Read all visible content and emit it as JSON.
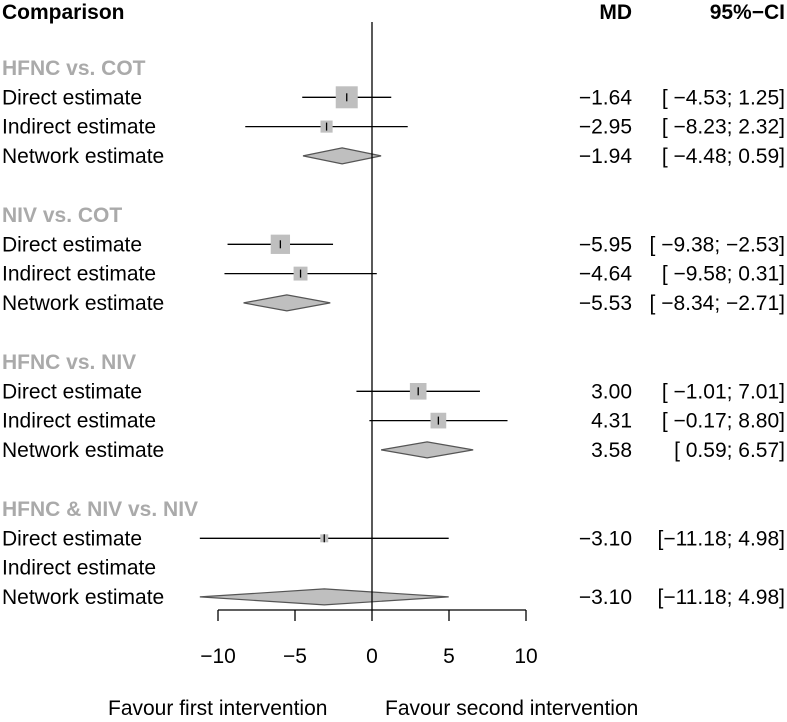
{
  "chart_data": {
    "type": "forest",
    "title": "",
    "xlabel_left": "Favour first intervention",
    "xlabel_right": "Favour second intervention",
    "xlim": [
      -10,
      10
    ],
    "xticks": [
      -10,
      -5,
      0,
      5,
      10
    ],
    "xtick_labels": [
      "−10",
      "−5",
      "0",
      "5",
      "10"
    ],
    "reference_line": 0,
    "headers": {
      "comparison": "Comparison",
      "md": "MD",
      "ci": "95%−CI"
    },
    "groups": [
      {
        "name": "HFNC vs. COT",
        "rows": [
          {
            "label": "Direct estimate",
            "kind": "square",
            "md": -1.64,
            "lo": -4.53,
            "hi": 1.25,
            "weight": 1.0,
            "md_text": "−1.64",
            "ci_text": "[ −4.53;  1.25]"
          },
          {
            "label": "Indirect estimate",
            "kind": "square",
            "md": -2.95,
            "lo": -8.23,
            "hi": 2.32,
            "weight": 0.45,
            "md_text": "−2.95",
            "ci_text": "[ −8.23;  2.32]"
          },
          {
            "label": "Network estimate",
            "kind": "diamond",
            "md": -1.94,
            "lo": -4.48,
            "hi": 0.59,
            "md_text": "−1.94",
            "ci_text": "[ −4.48;  0.59]"
          }
        ]
      },
      {
        "name": "NIV vs. COT",
        "rows": [
          {
            "label": "Direct estimate",
            "kind": "square",
            "md": -5.95,
            "lo": -9.38,
            "hi": -2.53,
            "weight": 0.85,
            "md_text": "−5.95",
            "ci_text": "[ −9.38; −2.53]"
          },
          {
            "label": "Indirect estimate",
            "kind": "square",
            "md": -4.64,
            "lo": -9.58,
            "hi": 0.31,
            "weight": 0.55,
            "md_text": "−4.64",
            "ci_text": "[ −9.58;  0.31]"
          },
          {
            "label": "Network estimate",
            "kind": "diamond",
            "md": -5.53,
            "lo": -8.34,
            "hi": -2.71,
            "md_text": "−5.53",
            "ci_text": "[ −8.34; −2.71]"
          }
        ]
      },
      {
        "name": "HFNC vs. NIV",
        "rows": [
          {
            "label": "Direct estimate",
            "kind": "square",
            "md": 3.0,
            "lo": -1.01,
            "hi": 7.01,
            "weight": 0.7,
            "md_text": "3.00",
            "ci_text": "[ −1.01;  7.01]"
          },
          {
            "label": "Indirect estimate",
            "kind": "square",
            "md": 4.31,
            "lo": -0.17,
            "hi": 8.8,
            "weight": 0.65,
            "md_text": "4.31",
            "ci_text": "[ −0.17;  8.80]"
          },
          {
            "label": "Network estimate",
            "kind": "diamond",
            "md": 3.58,
            "lo": 0.59,
            "hi": 6.57,
            "md_text": "3.58",
            "ci_text": "[  0.59;  6.57]"
          }
        ]
      },
      {
        "name": "HFNC & NIV vs. NIV",
        "rows": [
          {
            "label": "Direct estimate",
            "kind": "square",
            "md": -3.1,
            "lo": -11.18,
            "hi": 4.98,
            "weight": 0.22,
            "md_text": "−3.10",
            "ci_text": "[−11.18;  4.98]"
          },
          {
            "label": "Indirect estimate",
            "kind": "none",
            "md_text": "",
            "ci_text": ""
          },
          {
            "label": "Network estimate",
            "kind": "diamond",
            "md": -3.1,
            "lo": -11.18,
            "hi": 4.98,
            "md_text": "−3.10",
            "ci_text": "[−11.18;  4.98]"
          }
        ]
      }
    ],
    "colors": {
      "group_label": "#aaaaaa",
      "marker_fill": "#bfbfbf",
      "diamond_stroke": "#555555",
      "line": "#000000"
    }
  }
}
